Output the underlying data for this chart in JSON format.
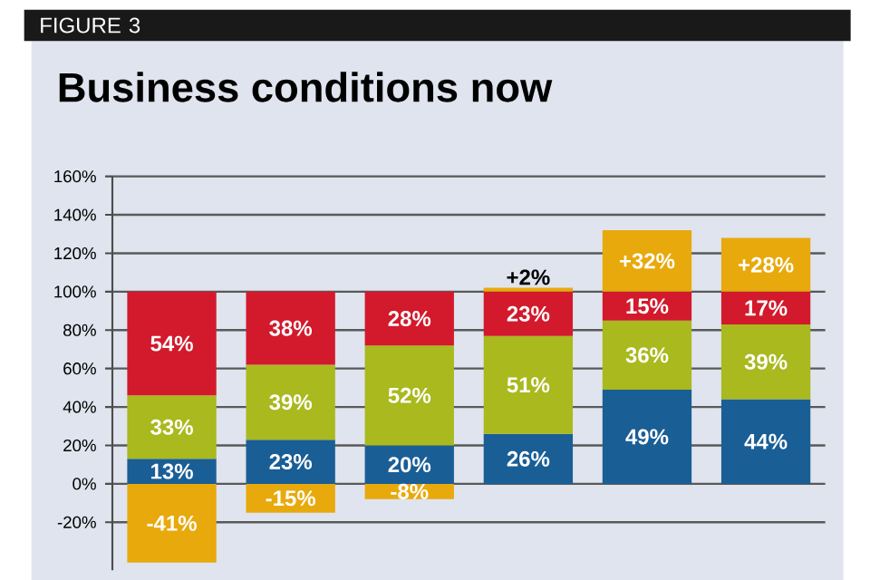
{
  "chart_data": {
    "type": "bar",
    "stacked": true,
    "title": "Business conditions now",
    "annotations": [
      "FIGURE 3"
    ],
    "categories": [
      null,
      null,
      null,
      null,
      null,
      null
    ],
    "series": [
      {
        "color": "#1a5e96",
        "values": [
          13,
          23,
          20,
          26,
          49,
          44
        ],
        "value_labels": [
          "13%",
          "23%",
          "20%",
          "26%",
          "49%",
          "44%"
        ]
      },
      {
        "color": "#a9b91e",
        "values": [
          33,
          39,
          52,
          51,
          36,
          39
        ],
        "value_labels": [
          "33%",
          "39%",
          "52%",
          "51%",
          "36%",
          "39%"
        ]
      },
      {
        "color": "#d21a2c",
        "values": [
          54,
          38,
          28,
          23,
          15,
          17
        ],
        "value_labels": [
          "54%",
          "38%",
          "28%",
          "23%",
          "15%",
          "17%"
        ]
      },
      {
        "color": "#e8a90c",
        "values": [
          -41,
          -15,
          -8,
          2,
          32,
          28
        ],
        "value_labels": [
          "-41%",
          "-15%",
          "-8%",
          "+2%",
          "+32%",
          "+28%"
        ]
      }
    ],
    "ylim": [
      -45,
      160
    ],
    "yticks": [
      {
        "value": -20,
        "label": "-20%"
      },
      {
        "value": 0,
        "label": "0%"
      },
      {
        "value": 20,
        "label": "20%"
      },
      {
        "value": 40,
        "label": "40%"
      },
      {
        "value": 60,
        "label": "60%"
      },
      {
        "value": 80,
        "label": "80%"
      },
      {
        "value": 100,
        "label": "100%"
      },
      {
        "value": 120,
        "label": "120%"
      },
      {
        "value": 140,
        "label": "140%"
      },
      {
        "value": 160,
        "label": "160%"
      }
    ],
    "grid": "y",
    "tick_labels": "y"
  }
}
